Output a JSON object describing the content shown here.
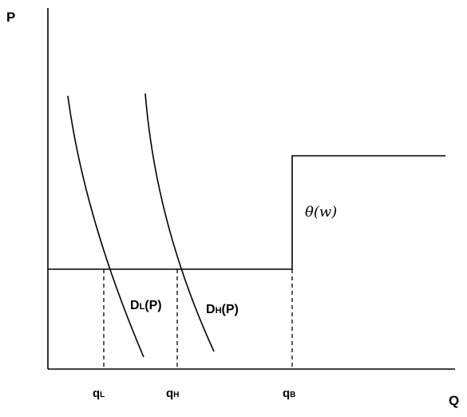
{
  "axes": {
    "y_label": "P",
    "x_label": "Q"
  },
  "quantities": [
    {
      "main": "q",
      "sub": "L"
    },
    {
      "main": "q",
      "sub": "H"
    },
    {
      "main": "q",
      "sub": "B"
    }
  ],
  "curves": {
    "demand_low": {
      "main": "D",
      "sub": "L",
      "suffix": "(P)"
    },
    "demand_high": {
      "main": "D",
      "sub": "H",
      "suffix": "(P)"
    },
    "step_label": "θ(w)"
  }
}
